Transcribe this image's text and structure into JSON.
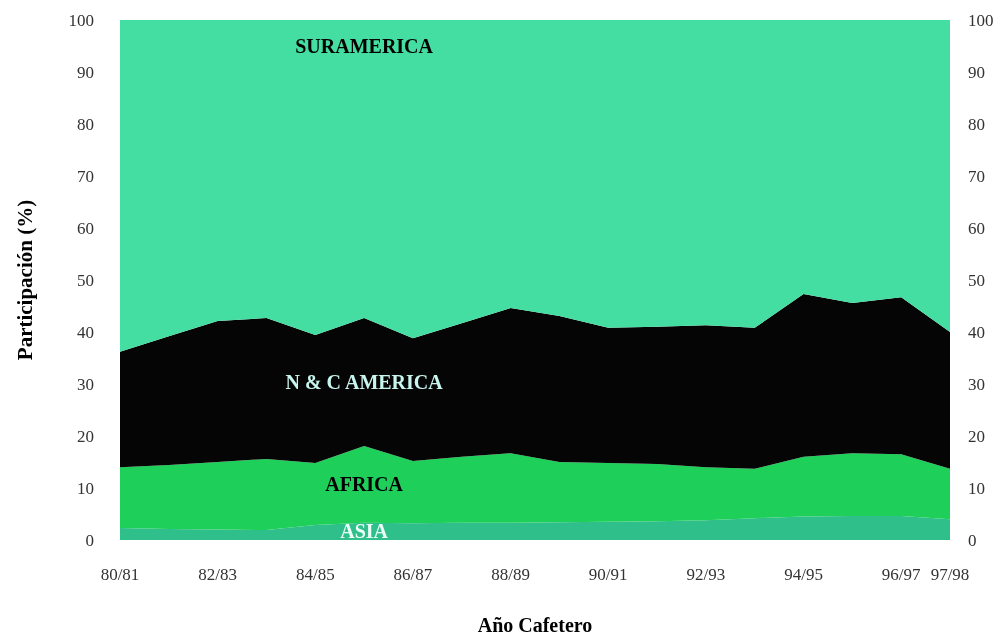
{
  "chart_data": {
    "type": "area",
    "stacked": true,
    "xlabel": "Año Cafetero",
    "ylabel": "Participación (%)",
    "categories": [
      "80/81",
      null,
      "82/83",
      null,
      "84/85",
      null,
      "86/87",
      null,
      "88/89",
      null,
      "90/91",
      null,
      "92/93",
      null,
      "94/95",
      null,
      "96/97",
      "97/98"
    ],
    "ylim": [
      0,
      100
    ],
    "yticks": [
      0,
      10,
      20,
      30,
      40,
      50,
      60,
      70,
      80,
      90,
      100
    ],
    "y2lim": [
      0,
      100
    ],
    "y2ticks": [
      0,
      10,
      20,
      30,
      40,
      50,
      60,
      70,
      80,
      90,
      100
    ],
    "grid": false,
    "series": [
      {
        "name": "ASIA",
        "color": "#2fbf8a",
        "values": [
          2.3,
          2.1,
          2.0,
          1.9,
          2.9,
          3.3,
          3.2,
          3.3,
          3.3,
          3.4,
          3.5,
          3.6,
          3.8,
          4.2,
          4.5,
          4.6,
          4.6,
          4.0
        ]
      },
      {
        "name": "AFRICA",
        "color": "#1ecf5a",
        "values": [
          11.7,
          12.3,
          13.0,
          13.7,
          11.9,
          14.8,
          12.0,
          12.7,
          13.4,
          11.6,
          11.3,
          11.0,
          10.2,
          9.5,
          11.5,
          12.1,
          11.9,
          9.7
        ]
      },
      {
        "name": "N & C AMERICA",
        "color": "#050505",
        "values": [
          22.2,
          24.8,
          27.1,
          27.1,
          24.6,
          24.6,
          23.6,
          25.7,
          27.9,
          28.1,
          26.0,
          26.4,
          27.3,
          27.1,
          31.3,
          28.9,
          30.2,
          26.3
        ]
      },
      {
        "name": "SURAMERICA",
        "color": "#44dda2",
        "values": [
          63.8,
          60.8,
          57.9,
          57.3,
          60.6,
          57.3,
          61.2,
          58.3,
          55.4,
          56.9,
          59.2,
          59.0,
          58.7,
          59.2,
          52.7,
          54.4,
          53.3,
          60.0
        ]
      }
    ]
  }
}
